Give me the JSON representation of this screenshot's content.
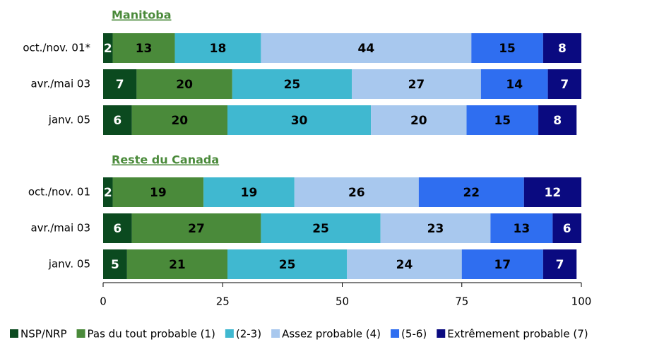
{
  "chart_data": {
    "type": "stacked-bar",
    "orientation": "horizontal",
    "groups": [
      "Manitoba",
      "Reste du Canada"
    ],
    "categories": [
      "oct./nov. 01*",
      "avr./mai 03",
      "janv. 05",
      "oct./nov. 01",
      "avr./mai 03",
      "janv. 05"
    ],
    "series": [
      {
        "name": "NSP/NRP",
        "color": "#0b4a1f",
        "values": [
          2,
          7,
          6,
          2,
          6,
          5
        ]
      },
      {
        "name": "Pas du tout probable (1)",
        "color": "#4a8a3a",
        "values": [
          13,
          20,
          20,
          19,
          27,
          21
        ]
      },
      {
        "name": "(2-3)",
        "color": "#40b8d0",
        "values": [
          18,
          25,
          30,
          19,
          25,
          25
        ]
      },
      {
        "name": "Assez probable (4)",
        "color": "#a8c8ee",
        "values": [
          44,
          27,
          20,
          26,
          23,
          24
        ]
      },
      {
        "name": "(5-6)",
        "color": "#2f6ef0",
        "values": [
          15,
          14,
          15,
          22,
          13,
          17
        ]
      },
      {
        "name": "Extrêmement probable (7)",
        "color": "#0a0a80",
        "values": [
          8,
          7,
          8,
          12,
          6,
          7
        ]
      }
    ],
    "xlim": [
      0,
      100
    ],
    "xticks": [
      0,
      25,
      50,
      75,
      100
    ],
    "legend": "bottom"
  }
}
